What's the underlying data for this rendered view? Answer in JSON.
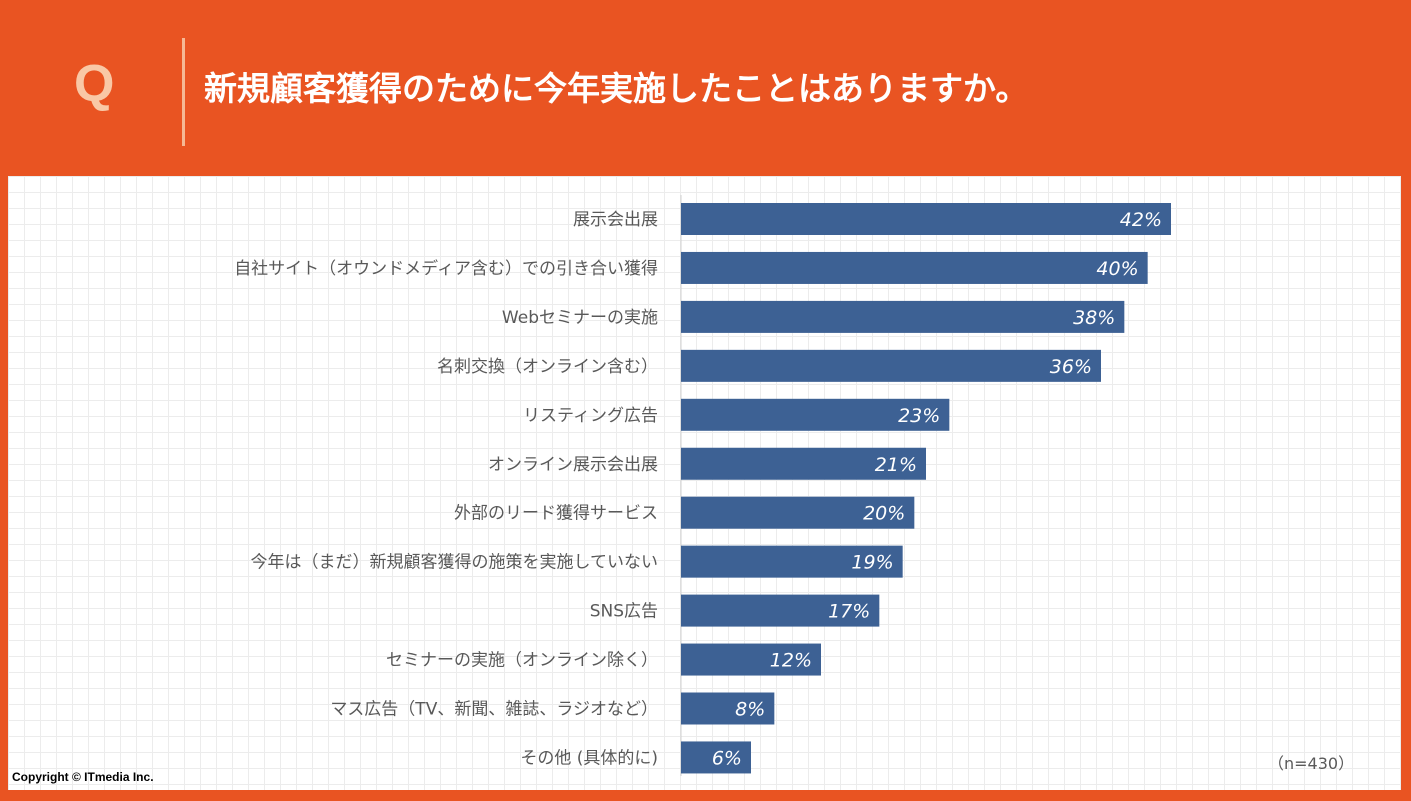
{
  "header": {
    "q_mark": "Q",
    "title": "新規顧客獲得のために今年実施したことはありますか。"
  },
  "chart_data": {
    "type": "bar",
    "orientation": "horizontal",
    "title": "新規顧客獲得のために今年実施したことはありますか。",
    "categories": [
      "展示会出展",
      "自社サイト（オウンドメディア含む）での引き合い獲得",
      "Webセミナーの実施",
      "名刺交換（オンライン含む）",
      "リスティング広告",
      "オンライン展示会出展",
      "外部のリード獲得サービス",
      "今年は（まだ）新規顧客獲得の施策を実施していない",
      "SNS広告",
      "セミナーの実施（オンライン除く）",
      "マス広告（TV、新聞、雑誌、ラジオなど）",
      "その他 (具体的に)"
    ],
    "values": [
      42,
      40,
      38,
      36,
      23,
      21,
      20,
      19,
      17,
      12,
      8,
      6
    ],
    "value_labels": [
      "42%",
      "40%",
      "38%",
      "36%",
      "23%",
      "21%",
      "20%",
      "19%",
      "17%",
      "12%",
      "8%",
      "6%"
    ],
    "unit": "%",
    "xlim": [
      0,
      60
    ],
    "bar_color": "#3d6194",
    "xlabel": "",
    "ylabel": ""
  },
  "note": "（n=430）",
  "copyright": "Copyright © ITmedia Inc.",
  "colors": {
    "accent": "#e95422",
    "q_mark": "#f9c8a6",
    "bar": "#3d6194"
  }
}
